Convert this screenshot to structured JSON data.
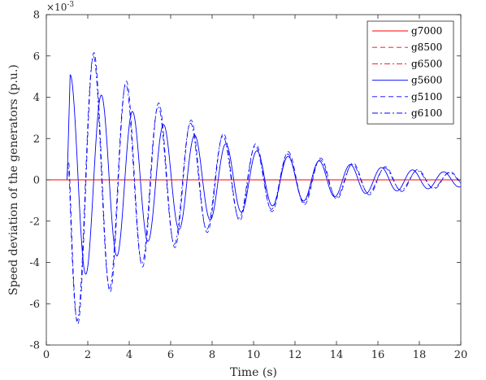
{
  "chart_data": {
    "type": "line",
    "xlabel": "Time (s)",
    "ylabel": "Speed deviation of the generators (p.u.)",
    "exponent_label_base": "×10",
    "exponent_label_power": "-3",
    "xlim": [
      0,
      20
    ],
    "ylim": [
      -8,
      8
    ],
    "x_ticks": [
      0,
      2,
      4,
      6,
      8,
      10,
      12,
      14,
      16,
      18,
      20
    ],
    "y_ticks": [
      -8,
      -6,
      -4,
      -2,
      0,
      2,
      4,
      6,
      8
    ],
    "y_scale_note": "values in units of 1e-3 p.u.",
    "grid": false,
    "legend_position": "top-right",
    "disturbance_start": 1.0,
    "series": [
      {
        "name": "g7000",
        "color": "#ff0000",
        "style": "solid",
        "amplitude": 0,
        "freq_hz": 0.65,
        "phase": 0,
        "tau": 6
      },
      {
        "name": "g8500",
        "color": "#ff0000",
        "style": "dashed",
        "amplitude": 0,
        "freq_hz": 0.65,
        "phase": 0,
        "tau": 6
      },
      {
        "name": "g6500",
        "color": "#ff0000",
        "style": "dashdot",
        "amplitude": 0,
        "freq_hz": 0.65,
        "phase": 0,
        "tau": 6
      },
      {
        "name": "g5600",
        "color": "#0000ff",
        "style": "solid",
        "amplitude": 5.2,
        "freq_hz": 0.666,
        "phase": 0.9,
        "tau": 7.0
      },
      {
        "name": "g5100",
        "color": "#0000ff",
        "style": "dashed",
        "amplitude": 7.6,
        "freq_hz": 0.64,
        "phase": 2.6,
        "tau": 6.2
      },
      {
        "name": "g6100",
        "color": "#0000ff",
        "style": "dashdot",
        "amplitude": 7.4,
        "freq_hz": 0.64,
        "phase": 2.7,
        "tau": 6.0
      }
    ]
  }
}
